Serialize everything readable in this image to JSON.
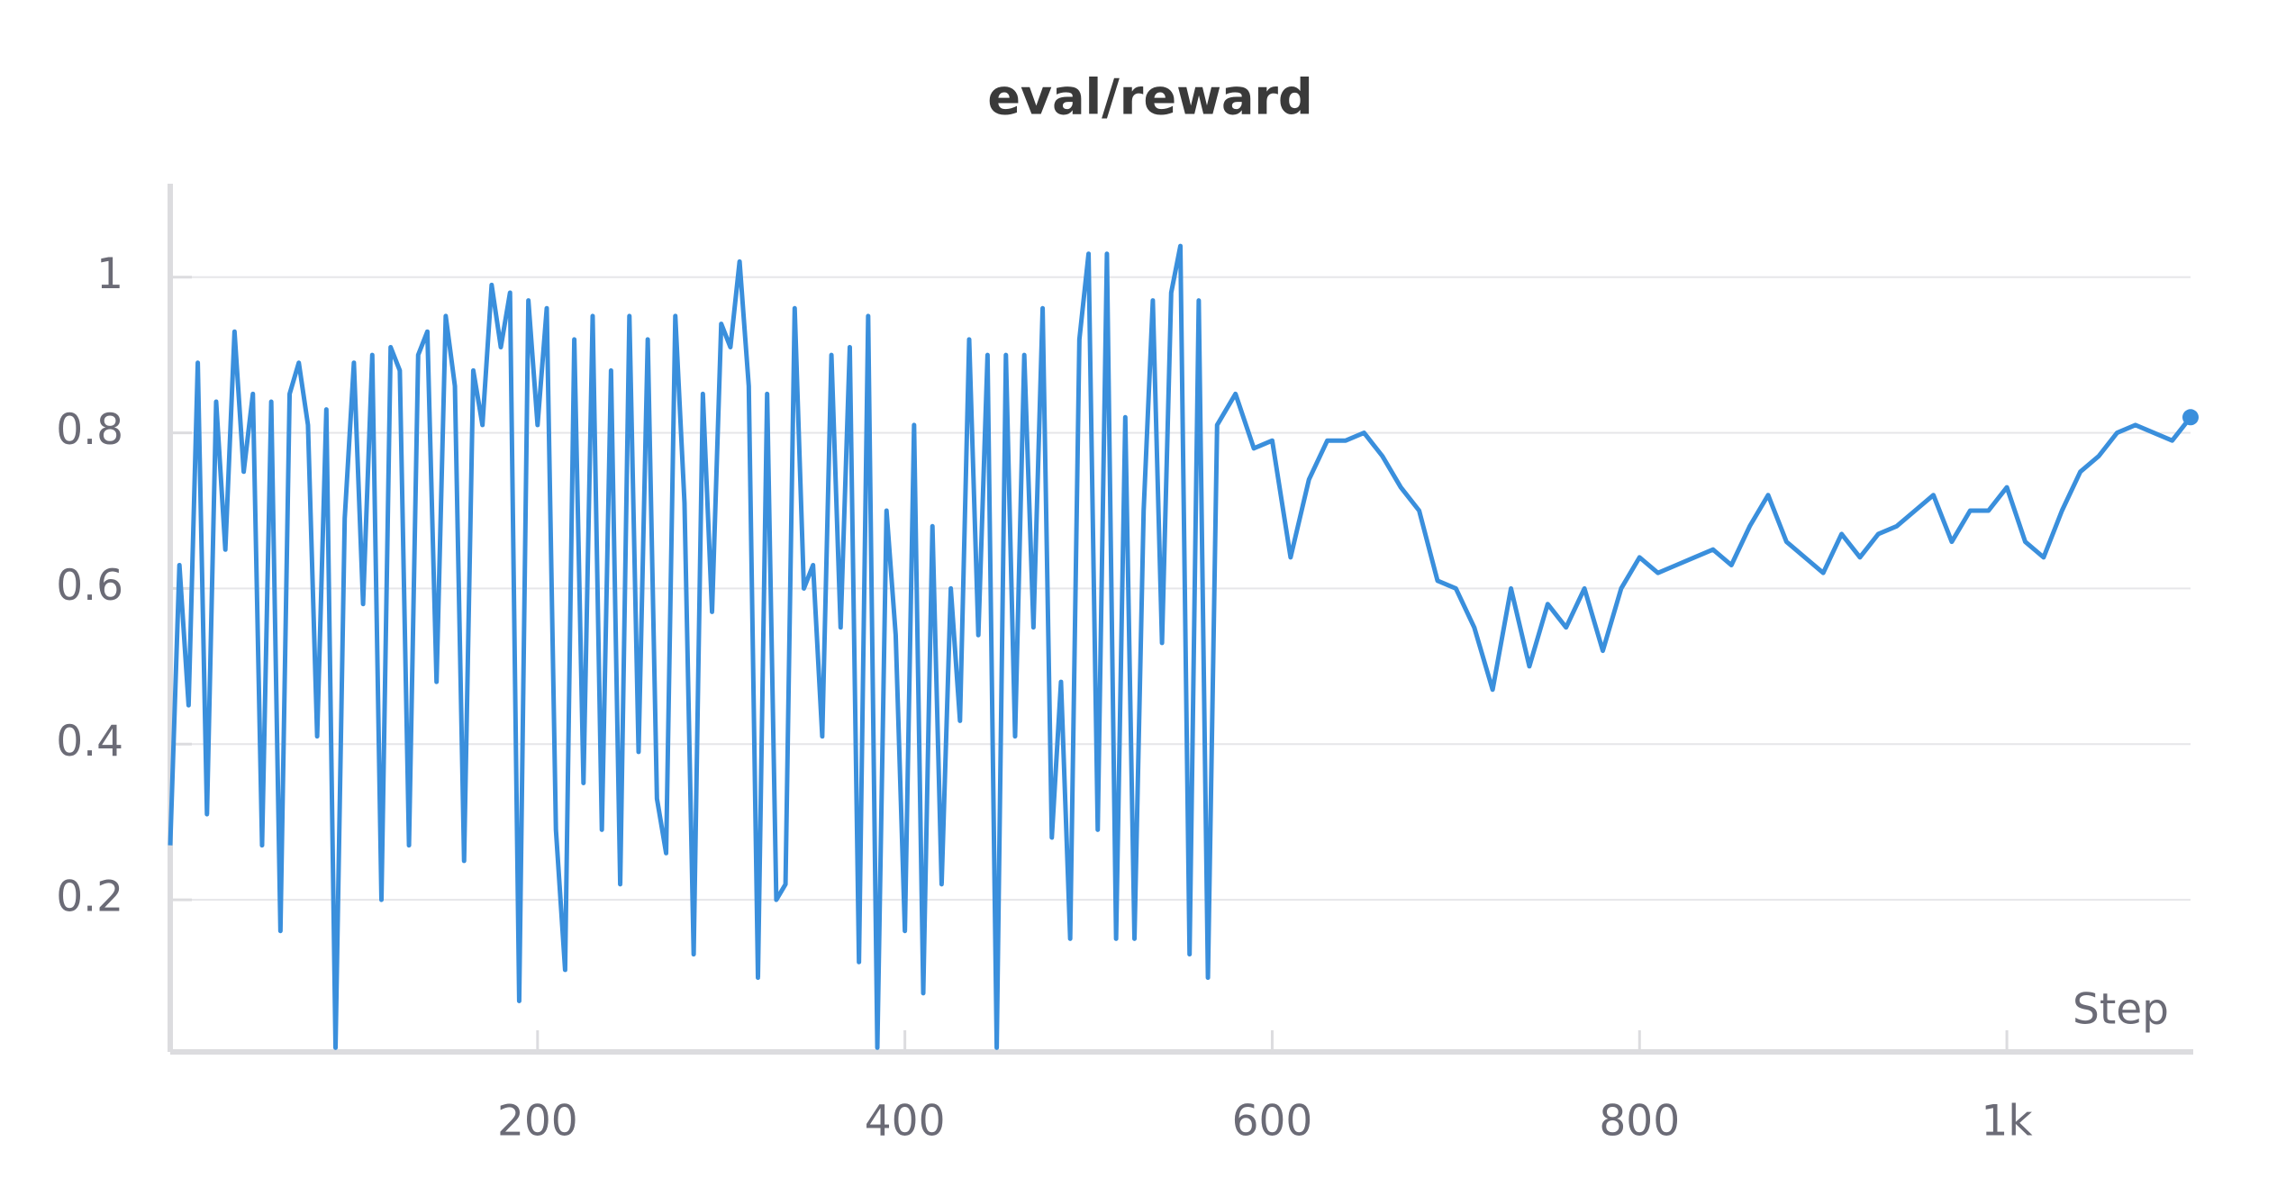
{
  "chart_data": {
    "type": "line",
    "title": "eval/reward",
    "x_label": "Step",
    "x": [
      0,
      5,
      10,
      15,
      20,
      25,
      30,
      35,
      40,
      45,
      50,
      55,
      60,
      65,
      70,
      75,
      80,
      85,
      90,
      95,
      100,
      105,
      110,
      115,
      120,
      125,
      130,
      135,
      140,
      145,
      150,
      155,
      160,
      165,
      170,
      175,
      180,
      185,
      190,
      195,
      200,
      205,
      210,
      215,
      220,
      225,
      230,
      235,
      240,
      245,
      250,
      255,
      260,
      265,
      270,
      275,
      280,
      285,
      290,
      295,
      300,
      305,
      310,
      315,
      320,
      325,
      330,
      335,
      340,
      345,
      350,
      355,
      360,
      365,
      370,
      375,
      380,
      385,
      390,
      395,
      400,
      405,
      410,
      415,
      420,
      425,
      430,
      435,
      440,
      445,
      450,
      455,
      460,
      465,
      470,
      475,
      480,
      485,
      490,
      495,
      500,
      505,
      510,
      515,
      520,
      525,
      530,
      535,
      540,
      545,
      550,
      555,
      560,
      565,
      570,
      580,
      590,
      600,
      610,
      620,
      630,
      640,
      650,
      660,
      670,
      680,
      690,
      700,
      710,
      720,
      730,
      740,
      750,
      760,
      770,
      780,
      790,
      800,
      810,
      820,
      830,
      840,
      850,
      860,
      870,
      880,
      890,
      900,
      910,
      920,
      930,
      940,
      950,
      960,
      970,
      980,
      990,
      1000,
      1010,
      1020,
      1030,
      1040,
      1050,
      1060,
      1070,
      1080,
      1090,
      1100
    ],
    "series": [
      {
        "name": "eval/reward",
        "color": "#3a8fdc",
        "values": [
          0.27,
          0.63,
          0.45,
          0.89,
          0.31,
          0.84,
          0.65,
          0.93,
          0.75,
          0.85,
          0.27,
          0.84,
          0.16,
          0.85,
          0.89,
          0.81,
          0.41,
          0.83,
          0.01,
          0.69,
          0.89,
          0.58,
          0.9,
          0.2,
          0.91,
          0.88,
          0.27,
          0.9,
          0.93,
          0.48,
          0.95,
          0.86,
          0.25,
          0.88,
          0.81,
          0.99,
          0.91,
          0.98,
          0.07,
          0.97,
          0.81,
          0.96,
          0.29,
          0.11,
          0.92,
          0.35,
          0.95,
          0.29,
          0.88,
          0.22,
          0.95,
          0.39,
          0.92,
          0.33,
          0.26,
          0.95,
          0.71,
          0.13,
          0.85,
          0.57,
          0.94,
          0.91,
          1.02,
          0.86,
          0.1,
          0.85,
          0.2,
          0.22,
          0.96,
          0.6,
          0.63,
          0.41,
          0.9,
          0.55,
          0.91,
          0.12,
          0.95,
          0.01,
          0.7,
          0.54,
          0.16,
          0.81,
          0.08,
          0.68,
          0.22,
          0.6,
          0.43,
          0.92,
          0.54,
          0.9,
          0.01,
          0.9,
          0.41,
          0.9,
          0.55,
          0.96,
          0.28,
          0.48,
          0.15,
          0.92,
          1.03,
          0.29,
          1.03,
          0.15,
          0.82,
          0.15,
          0.7,
          0.97,
          0.53,
          0.98,
          1.04,
          0.13,
          0.97,
          0.1,
          0.81,
          0.85,
          0.78,
          0.79,
          0.64,
          0.74,
          0.79,
          0.79,
          0.8,
          0.77,
          0.73,
          0.7,
          0.61,
          0.6,
          0.55,
          0.47,
          0.6,
          0.5,
          0.58,
          0.55,
          0.6,
          0.52,
          0.6,
          0.64,
          0.62,
          0.63,
          0.64,
          0.65,
          0.63,
          0.68,
          0.72,
          0.66,
          0.64,
          0.62,
          0.67,
          0.64,
          0.67,
          0.68,
          0.7,
          0.72,
          0.66,
          0.7,
          0.7,
          0.73,
          0.66,
          0.64,
          0.7,
          0.75,
          0.77,
          0.8,
          0.81,
          0.8,
          0.79,
          0.82
        ]
      }
    ],
    "xlim": [
      0,
      1100
    ],
    "ylim": [
      0,
      1.12
    ],
    "xticks": [
      200,
      400,
      600,
      800,
      {
        "value": 1000,
        "label": "1k"
      }
    ],
    "yticks": [
      0.2,
      0.4,
      0.6,
      0.8,
      1
    ],
    "grid": true
  }
}
